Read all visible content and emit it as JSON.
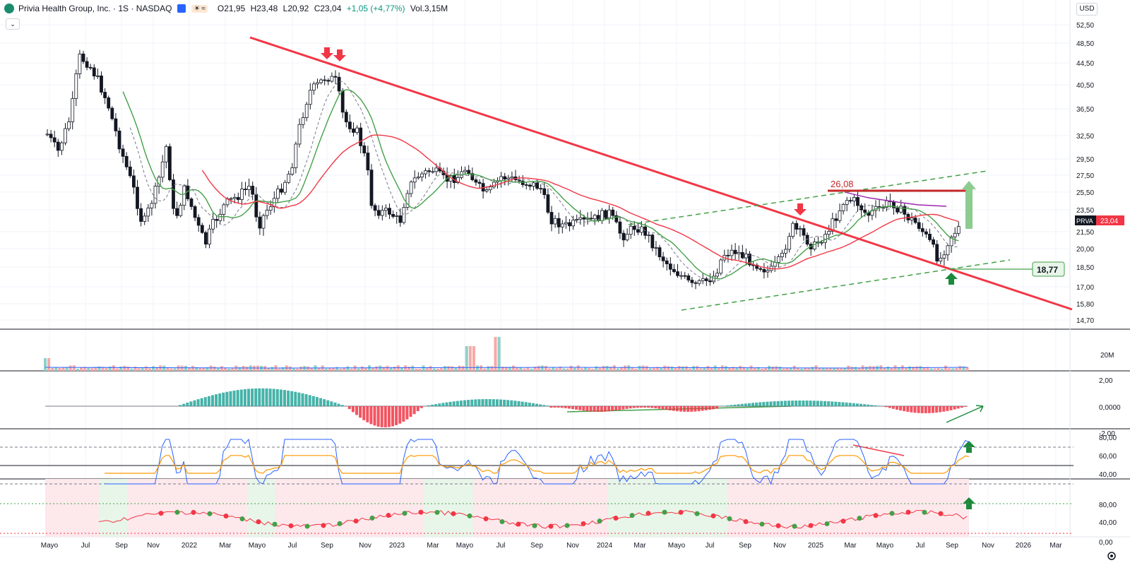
{
  "header": {
    "symbol_title": "Privia Health Group, Inc. · 1S · NASDAQ",
    "open": "O21,95",
    "high": "H23,48",
    "low": "L20,92",
    "close": "C23,04",
    "change": "+1,05 (+4,77%)",
    "volume": "Vol.3,15M",
    "collapse_icon": "chevron-down-icon"
  },
  "currency_label": "USD",
  "price_axis": {
    "ticks": [
      "52,50",
      "48,50",
      "44,50",
      "40,50",
      "36,50",
      "32,50",
      "29,50",
      "27,50",
      "25,50",
      "23,50",
      "21,50",
      "20,00",
      "18,50",
      "17,00",
      "15,80",
      "14,70"
    ]
  },
  "price_tag": {
    "symbol": "PRVA",
    "value": "23,04",
    "color": "#f23645"
  },
  "annotations": {
    "resistance_label": "26,08",
    "support_label": "18,77"
  },
  "volume_axis": {
    "label": "20M"
  },
  "macd_axis": {
    "ticks": [
      "2,00",
      "0,0000",
      "-2,00"
    ]
  },
  "rsi_axis": {
    "ticks": [
      "80,00",
      "60,00",
      "40,00"
    ]
  },
  "osc_axis": {
    "ticks": [
      "80,00",
      "40,00",
      "0,00"
    ]
  },
  "time_axis": {
    "labels": [
      "Mayo",
      "Jul",
      "Sep",
      "Nov",
      "2022",
      "Mar",
      "Mayo",
      "Jul",
      "Sep",
      "Nov",
      "2023",
      "Mar",
      "Mayo",
      "Jul",
      "Sep",
      "Nov",
      "2024",
      "Mar",
      "Mayo",
      "Jul",
      "Sep",
      "Nov",
      "2025",
      "Mar",
      "Mayo",
      "Jul",
      "Sep",
      "Nov",
      "2026",
      "Mar"
    ]
  },
  "colors": {
    "up": "#26a69a",
    "down": "#ef5350",
    "trendline": "#f23645",
    "channel": "#43a047",
    "ma_fast": "#43a047",
    "ma_slow": "#f23645",
    "rsi": "#2962ff",
    "rsi_ma": "#ff9800"
  },
  "footer": {
    "settings_icon": "gear-icon"
  }
}
